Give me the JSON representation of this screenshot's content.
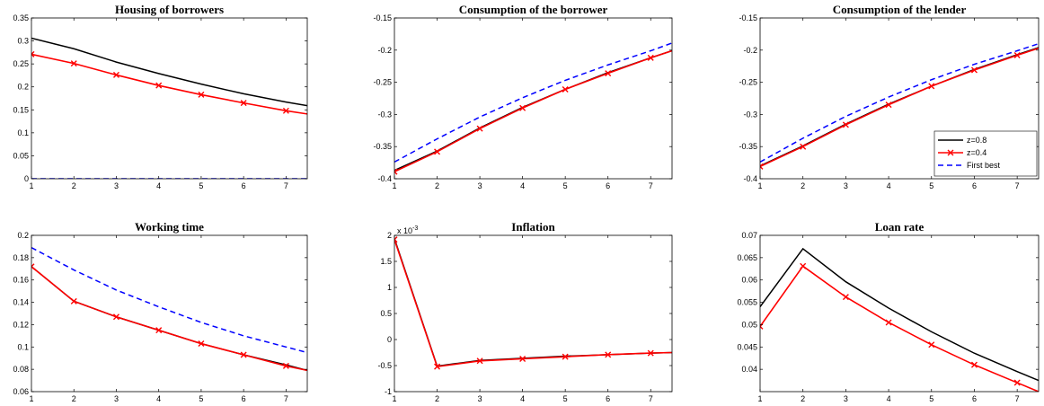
{
  "colors": {
    "z08": "#000000",
    "z04": "#ff0000",
    "first_best": "#0000ff"
  },
  "legend": {
    "entries": [
      "z=0.8",
      "z=0.4",
      "First best"
    ],
    "location": "bottom-right of panel 3"
  },
  "chart_data": [
    {
      "type": "line",
      "title": "Housing of borrowers",
      "x": [
        1,
        2,
        3,
        4,
        5,
        6,
        7,
        7.5
      ],
      "xlim": [
        1,
        7.5
      ],
      "xticks": [
        1,
        2,
        3,
        4,
        5,
        6,
        7
      ],
      "ylim": [
        0,
        0.35
      ],
      "yticks": [
        0,
        0.05,
        0.1,
        0.15,
        0.2,
        0.25,
        0.3,
        0.35
      ],
      "ytick_labels": [
        "0",
        "0.05",
        "0.1",
        "0.15",
        "0.2",
        "0.25",
        "0.3",
        "0.35"
      ],
      "series": [
        {
          "name": "z=0.8",
          "values": [
            0.306,
            0.283,
            0.254,
            0.229,
            0.206,
            0.185,
            0.167,
            0.159
          ]
        },
        {
          "name": "z=0.4",
          "values": [
            0.271,
            0.251,
            0.226,
            0.203,
            0.183,
            0.165,
            0.148,
            0.141
          ]
        },
        {
          "name": "First best",
          "values": [
            0,
            0,
            0,
            0,
            0,
            0,
            0,
            0
          ]
        }
      ]
    },
    {
      "type": "line",
      "title": "Consumption of the borrower",
      "x": [
        1,
        2,
        3,
        4,
        5,
        6,
        7,
        7.5
      ],
      "xlim": [
        1,
        7.5
      ],
      "xticks": [
        1,
        2,
        3,
        4,
        5,
        6,
        7
      ],
      "ylim": [
        -0.4,
        -0.15
      ],
      "yticks": [
        -0.4,
        -0.35,
        -0.3,
        -0.25,
        -0.2,
        -0.15
      ],
      "ytick_labels": [
        "-0.4",
        "-0.35",
        "-0.3",
        "-0.25",
        "-0.2",
        "-0.15"
      ],
      "series": [
        {
          "name": "z=0.8",
          "values": [
            -0.387,
            -0.357,
            -0.321,
            -0.289,
            -0.261,
            -0.235,
            -0.212,
            -0.201
          ]
        },
        {
          "name": "z=0.4",
          "values": [
            -0.389,
            -0.358,
            -0.322,
            -0.29,
            -0.261,
            -0.236,
            -0.212,
            -0.201
          ]
        },
        {
          "name": "First best",
          "values": [
            -0.374,
            -0.338,
            -0.304,
            -0.274,
            -0.247,
            -0.223,
            -0.201,
            -0.189
          ]
        }
      ]
    },
    {
      "type": "line",
      "title": "Consumption of the lender",
      "x": [
        1,
        2,
        3,
        4,
        5,
        6,
        7,
        7.5
      ],
      "xlim": [
        1,
        7.5
      ],
      "xticks": [
        1,
        2,
        3,
        4,
        5,
        6,
        7
      ],
      "ylim": [
        -0.4,
        -0.15
      ],
      "yticks": [
        -0.4,
        -0.35,
        -0.3,
        -0.25,
        -0.2,
        -0.15
      ],
      "ytick_labels": [
        "-0.4",
        "-0.35",
        "-0.3",
        "-0.25",
        "-0.2",
        "-0.15"
      ],
      "series": [
        {
          "name": "z=0.8",
          "values": [
            -0.38,
            -0.349,
            -0.315,
            -0.284,
            -0.256,
            -0.23,
            -0.207,
            -0.196
          ]
        },
        {
          "name": "z=0.4",
          "values": [
            -0.381,
            -0.35,
            -0.316,
            -0.285,
            -0.256,
            -0.231,
            -0.208,
            -0.197
          ]
        },
        {
          "name": "First best",
          "values": [
            -0.374,
            -0.337,
            -0.303,
            -0.273,
            -0.246,
            -0.222,
            -0.201,
            -0.19
          ]
        }
      ]
    },
    {
      "type": "line",
      "title": "Working time",
      "x": [
        1,
        2,
        3,
        4,
        5,
        6,
        7,
        7.5
      ],
      "xlim": [
        1,
        7.5
      ],
      "xticks": [
        1,
        2,
        3,
        4,
        5,
        6,
        7
      ],
      "ylim": [
        0.06,
        0.2
      ],
      "yticks": [
        0.06,
        0.08,
        0.1,
        0.12,
        0.14,
        0.16,
        0.18,
        0.2
      ],
      "ytick_labels": [
        "0.06",
        "0.08",
        "0.1",
        "0.12",
        "0.14",
        "0.16",
        "0.18",
        "0.2"
      ],
      "series": [
        {
          "name": "z=0.8",
          "values": [
            0.172,
            0.141,
            0.127,
            0.115,
            0.103,
            0.093,
            0.084,
            0.079
          ]
        },
        {
          "name": "z=0.4",
          "values": [
            0.172,
            0.141,
            0.127,
            0.115,
            0.103,
            0.093,
            0.083,
            0.079
          ]
        },
        {
          "name": "First best",
          "values": [
            0.189,
            0.169,
            0.151,
            0.136,
            0.122,
            0.11,
            0.1,
            0.095
          ]
        }
      ]
    },
    {
      "type": "line",
      "title": "Inflation",
      "x": [
        1,
        2,
        3,
        4,
        5,
        6,
        7,
        7.5
      ],
      "xlim": [
        1,
        7.5
      ],
      "xticks": [
        1,
        2,
        3,
        4,
        5,
        6,
        7
      ],
      "ylim": [
        -1,
        2
      ],
      "yticks": [
        -1,
        -0.5,
        0,
        0.5,
        1,
        1.5,
        2
      ],
      "ytick_labels": [
        "-1",
        "-0.5",
        "0",
        "0.5",
        "1",
        "1.5",
        "2"
      ],
      "exponent_label": "x 10",
      "exponent_power": "-3",
      "series": [
        {
          "name": "z=0.8",
          "values": [
            1.94,
            -0.51,
            -0.4,
            -0.36,
            -0.32,
            -0.29,
            -0.26,
            -0.25
          ]
        },
        {
          "name": "z=0.4",
          "values": [
            1.92,
            -0.52,
            -0.41,
            -0.37,
            -0.33,
            -0.29,
            -0.26,
            -0.25
          ]
        }
      ]
    },
    {
      "type": "line",
      "title": "Loan rate",
      "x": [
        1,
        2,
        3,
        4,
        5,
        6,
        7,
        7.5
      ],
      "xlim": [
        1,
        7.5
      ],
      "xticks": [
        1,
        2,
        3,
        4,
        5,
        6,
        7
      ],
      "ylim": [
        0.035,
        0.07
      ],
      "yticks": [
        0.04,
        0.045,
        0.05,
        0.055,
        0.06,
        0.065,
        0.07
      ],
      "ytick_labels": [
        "0.04",
        "0.045",
        "0.05",
        "0.055",
        "0.06",
        "0.065",
        "0.07"
      ],
      "series": [
        {
          "name": "z=0.8",
          "values": [
            0.054,
            0.067,
            0.0596,
            0.0537,
            0.0484,
            0.0436,
            0.0395,
            0.0375
          ]
        },
        {
          "name": "z=0.4",
          "values": [
            0.0496,
            0.0631,
            0.0562,
            0.0505,
            0.0455,
            0.041,
            0.037,
            0.035
          ]
        }
      ]
    }
  ]
}
